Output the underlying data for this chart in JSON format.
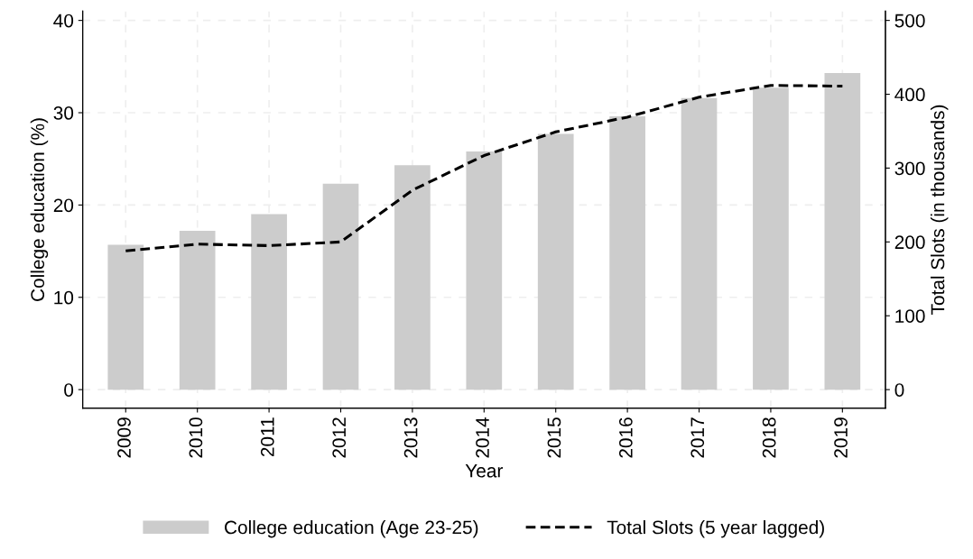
{
  "chart_data": {
    "type": "bar",
    "xlabel": "Year",
    "ylabel": "College education (%)",
    "y2label": "Total Slots (in thousands)",
    "categories": [
      "2009",
      "2010",
      "2011",
      "2012",
      "2013",
      "2014",
      "2015",
      "2016",
      "2017",
      "2018",
      "2019"
    ],
    "series": [
      {
        "name": "College education (Age 23-25)",
        "color": "#cccccc",
        "values": [
          15.7,
          17.2,
          19.0,
          22.3,
          24.3,
          25.8,
          27.7,
          29.6,
          31.6,
          32.7,
          34.3
        ]
      },
      {
        "name": "Total Slots (5 year lagged)",
        "type": "line",
        "axis": "y2",
        "color": "#000000",
        "line_style": "dashed",
        "values": [
          188,
          197,
          195,
          200,
          270,
          317,
          349,
          369,
          396,
          412,
          411
        ]
      }
    ],
    "ylim": [
      -2,
      41
    ],
    "yticks": [
      0,
      10,
      20,
      30,
      40
    ],
    "y2lim": [
      -25,
      512.5
    ],
    "y2ticks": [
      0,
      100,
      200,
      300,
      400,
      500
    ],
    "grid": true,
    "legend": "bottom"
  }
}
